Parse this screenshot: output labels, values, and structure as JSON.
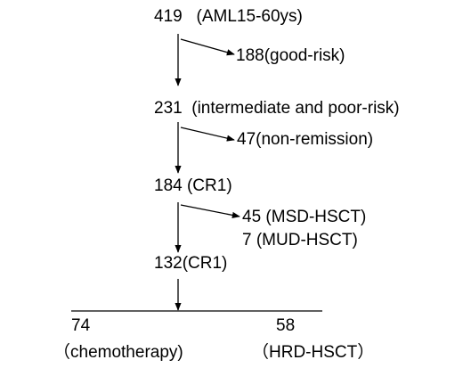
{
  "nodes": [
    {
      "label": "419   (AML15-60ys)"
    },
    {
      "label": "188(good-risk)"
    },
    {
      "label": "231  (intermediate and poor-risk)"
    },
    {
      "label": "47(non-remission)"
    },
    {
      "label": "184 (CR1)"
    },
    {
      "label": "45 (MSD-HSCT)"
    },
    {
      "label": "7 (MUD-HSCT)"
    },
    {
      "label": "132(CR1)"
    },
    {
      "label": "74"
    },
    {
      "label": "（chemotherapy)"
    },
    {
      "label": "58"
    },
    {
      "label": "（HRD-HSCT）"
    }
  ]
}
